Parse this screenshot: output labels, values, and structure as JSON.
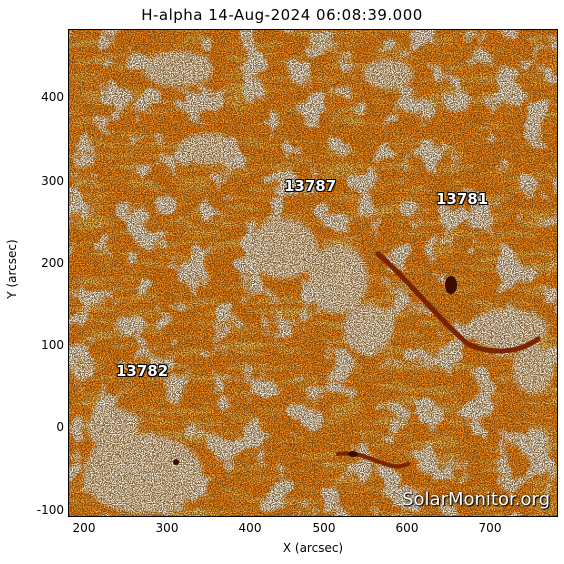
{
  "title": "H-alpha 14-Aug-2024 06:08:39.000",
  "axes": {
    "xlabel": "X (arcsec)",
    "ylabel": "Y (arcsec)",
    "xticks": [
      "200",
      "300",
      "400",
      "500",
      "600",
      "700"
    ],
    "yticks": [
      "400",
      "300",
      "200",
      "100",
      "0",
      "-100"
    ]
  },
  "regions": [
    "13787",
    "13781",
    "13782"
  ],
  "watermark": "SolarMonitor.org",
  "colors": {
    "base": "#ff8c1a",
    "bright": "#fff4e6",
    "dark": "#1a0a00",
    "mid": "#ffb060"
  }
}
